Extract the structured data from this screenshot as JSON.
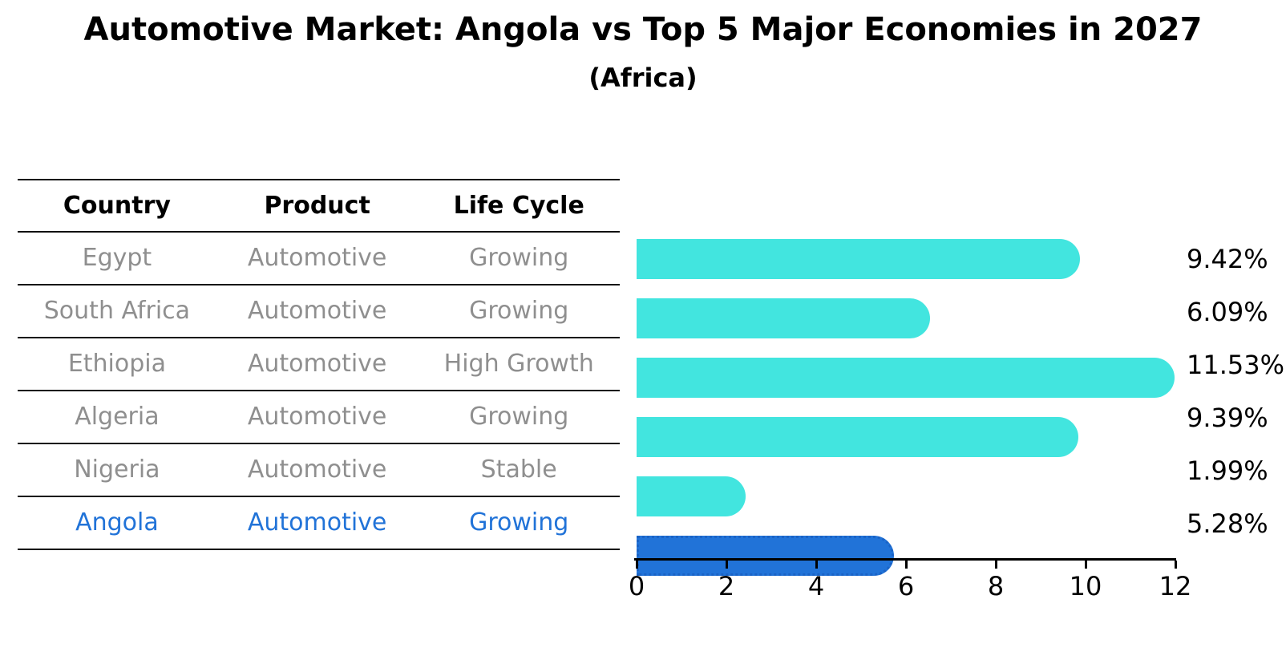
{
  "title": "Automotive Market: Angola vs Top 5 Major Economies in 2027",
  "subtitle": "(Africa)",
  "table": {
    "headers": {
      "country": "Country",
      "product": "Product",
      "life_cycle": "Life Cycle"
    }
  },
  "chart_data": {
    "type": "bar",
    "orientation": "horizontal",
    "title": "Automotive Market: Angola vs Top 5 Major Economies in 2027",
    "subtitle": "(Africa)",
    "unit": "%",
    "xlim": [
      0,
      12
    ],
    "x_ticks": [
      "0",
      "2",
      "4",
      "6",
      "8",
      "10",
      "12"
    ],
    "grid": false,
    "legend": false,
    "categories": [
      "Egypt",
      "South Africa",
      "Ethiopia",
      "Algeria",
      "Nigeria",
      "Angola"
    ],
    "rows": [
      {
        "country": "Egypt",
        "product": "Automotive",
        "life_cycle": "Growing",
        "value": 9.42,
        "value_label": "9.42%",
        "highlight": false
      },
      {
        "country": "South Africa",
        "product": "Automotive",
        "life_cycle": "Growing",
        "value": 6.09,
        "value_label": "6.09%",
        "highlight": false
      },
      {
        "country": "Ethiopia",
        "product": "Automotive",
        "life_cycle": "High Growth",
        "value": 11.53,
        "value_label": "11.53%",
        "highlight": false
      },
      {
        "country": "Algeria",
        "product": "Automotive",
        "life_cycle": "Growing",
        "value": 9.39,
        "value_label": "9.39%",
        "highlight": false
      },
      {
        "country": "Nigeria",
        "product": "Automotive",
        "life_cycle": "Stable",
        "value": 1.99,
        "value_label": "1.99%",
        "highlight": false
      },
      {
        "country": "Angola",
        "product": "Automotive",
        "life_cycle": "Growing",
        "value": 5.28,
        "value_label": "5.28%",
        "highlight": true
      }
    ],
    "colors": {
      "bar": "#42e5df",
      "highlight_bar": "#2173d8",
      "highlight_bar_border": "#1a63c6",
      "row_text": "#8f8f8f",
      "highlight_text": "#2173d8",
      "axis": "#000000",
      "title_text": "#000000"
    }
  }
}
